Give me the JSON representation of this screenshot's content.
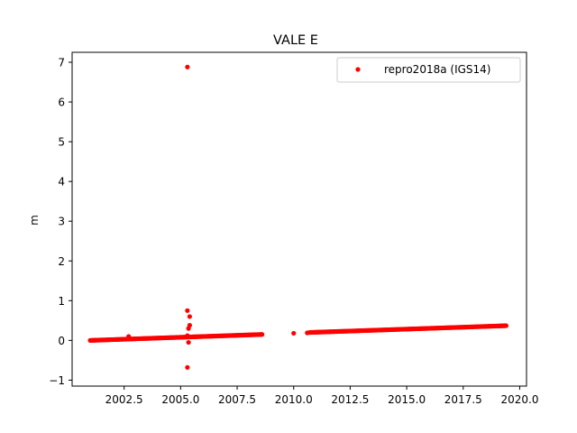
{
  "chart_data": {
    "type": "scatter",
    "title": "VALE E",
    "xlabel": "",
    "ylabel": "m",
    "xlim": [
      2000.2,
      2020.3
    ],
    "ylim": [
      -1.15,
      7.25
    ],
    "xticks": [
      "2002.5",
      "2005.0",
      "2007.5",
      "2010.0",
      "2012.5",
      "2015.0",
      "2017.5",
      "2020.0"
    ],
    "yticks": [
      "−1",
      "0",
      "1",
      "2",
      "3",
      "4",
      "5",
      "6",
      "7"
    ],
    "grid": false,
    "legend": {
      "position": "top-right"
    },
    "colors": {
      "series": "#ff0000",
      "axes": "#000000",
      "legend_border": "#cccccc"
    },
    "series": [
      {
        "name": "repro2018a (IGS14)",
        "marker": "dot",
        "segments": [
          {
            "x_start": 2001.0,
            "x_end": 2008.6,
            "y_start": 0.0,
            "y_end": 0.15,
            "count": 180
          },
          {
            "x_start": 2010.7,
            "x_end": 2019.4,
            "y_start": 0.2,
            "y_end": 0.37,
            "count": 200
          }
        ],
        "points": [
          {
            "x": 2002.7,
            "y": 0.1
          },
          {
            "x": 2005.3,
            "y": 6.88
          },
          {
            "x": 2005.3,
            "y": 0.75
          },
          {
            "x": 2005.4,
            "y": 0.6
          },
          {
            "x": 2005.4,
            "y": 0.38
          },
          {
            "x": 2005.35,
            "y": 0.3
          },
          {
            "x": 2005.3,
            "y": 0.12
          },
          {
            "x": 2005.35,
            "y": -0.05
          },
          {
            "x": 2005.3,
            "y": -0.68
          },
          {
            "x": 2010.0,
            "y": 0.18
          },
          {
            "x": 2010.6,
            "y": 0.19
          }
        ]
      }
    ]
  }
}
